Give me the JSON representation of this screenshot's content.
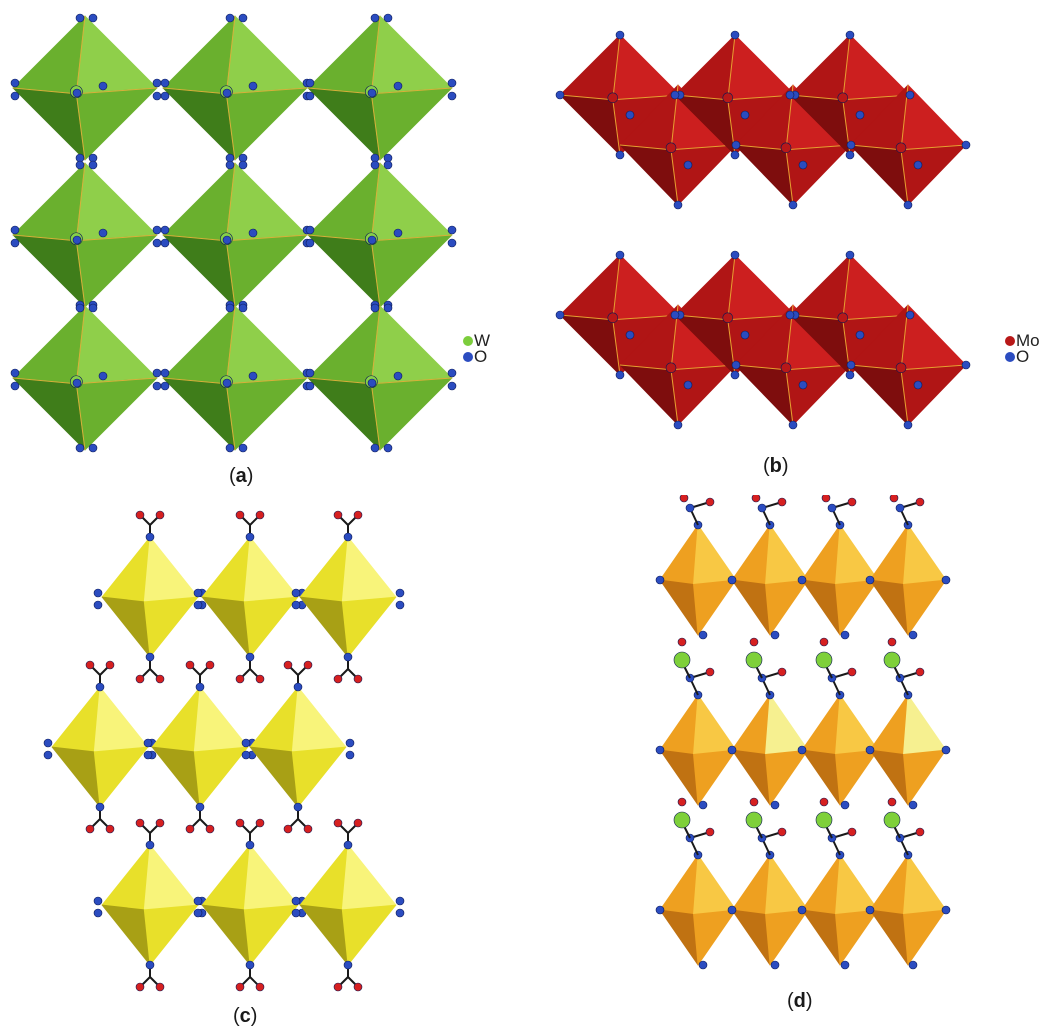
{
  "panels": [
    {
      "id": "a",
      "caption": "a",
      "colors": {
        "light": "#8fcf4a",
        "mid": "#6ab02e",
        "dark": "#3f7d1a",
        "edge": "#d8b03a"
      },
      "legend": [
        {
          "label": "W",
          "color": "#7ccd3c"
        },
        {
          "label": "O",
          "color": "#2b4cc0"
        }
      ]
    },
    {
      "id": "b",
      "caption": "b",
      "colors": {
        "light": "#cc1f1f",
        "mid": "#b01515",
        "dark": "#7e0d0d",
        "edge": "#e6a030"
      },
      "legend": [
        {
          "label": "Mo",
          "color": "#b81818"
        },
        {
          "label": "O",
          "color": "#2b4cc0"
        }
      ]
    },
    {
      "id": "c",
      "caption": "c",
      "colors": {
        "light": "#f8f47a",
        "mid": "#e8e02a",
        "dark": "#a8a015",
        "edge": "#b8b020"
      },
      "legend": []
    },
    {
      "id": "d",
      "caption": "d",
      "colors": {
        "light": "#f8c844",
        "mid": "#eea020",
        "dark": "#c07212",
        "edge": "#b86810",
        "pale": "#f6f090"
      },
      "legend": []
    }
  ],
  "atom_colors": {
    "oxygen": "#2b4cc0",
    "red_oxygen": "#d62020",
    "chlorine": "#7ed03a",
    "bond": "#1a1a1a"
  }
}
